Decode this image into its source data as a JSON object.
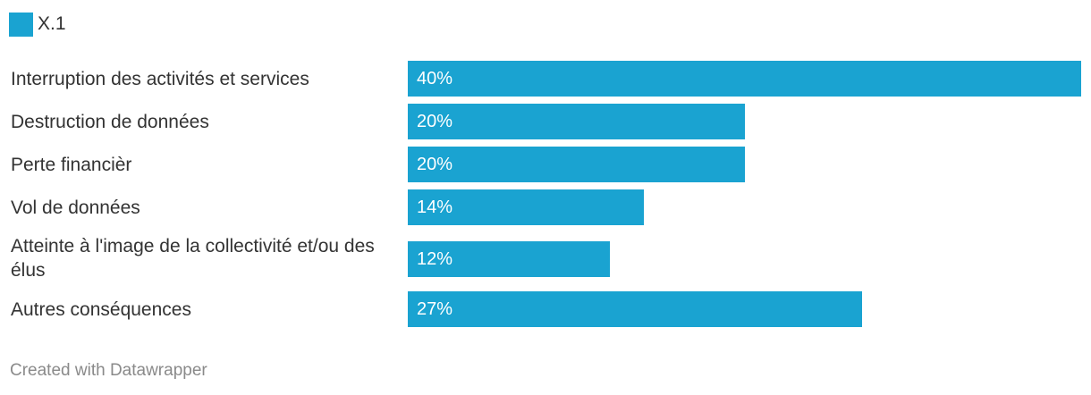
{
  "colors": {
    "bar": "#1aa3d1",
    "text": "#333333",
    "credit": "#8a8a8a"
  },
  "legend": {
    "label": "X.1"
  },
  "chart_data": {
    "type": "bar",
    "orientation": "horizontal",
    "categories": [
      "Interruption des activités et services",
      "Destruction de données",
      "Perte financièr",
      "Vol de données",
      "Atteinte à l'image de la collectivité et/ou des élus",
      "Autres conséquences"
    ],
    "series": [
      {
        "name": "X.1",
        "values": [
          40,
          20,
          20,
          14,
          12,
          27
        ],
        "value_labels": [
          "40%",
          "20%",
          "20%",
          "14%",
          "12%",
          "27%"
        ]
      }
    ],
    "xlim": [
      0,
      40
    ],
    "grid": false,
    "legend_position": "top-left"
  },
  "footer": {
    "credit": "Created with Datawrapper"
  }
}
